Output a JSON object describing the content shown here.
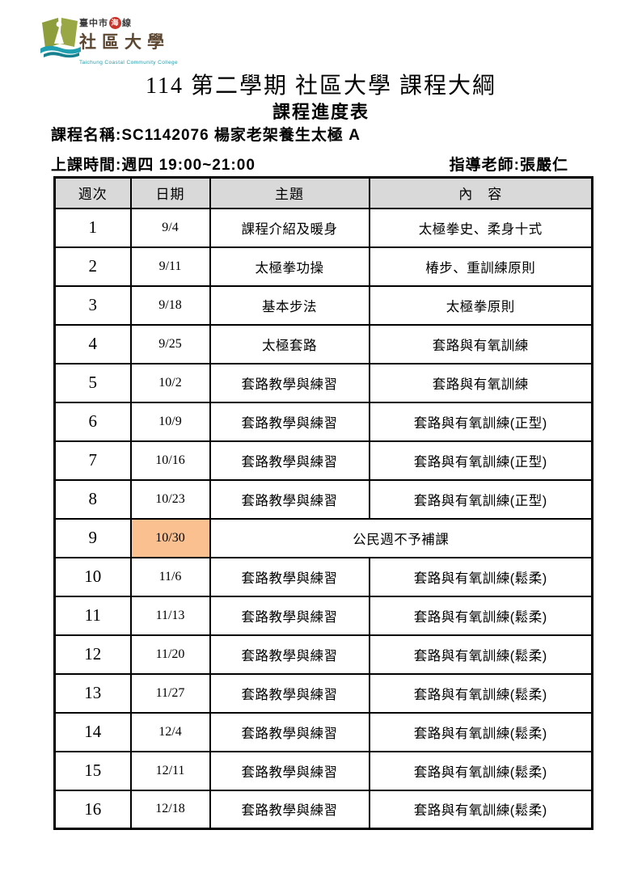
{
  "logo": {
    "org_prefix": "臺中市",
    "seal_char": "海",
    "org_suffix": "線",
    "org_main": "社區大學",
    "org_english": "Taichung Coastal Community College"
  },
  "header": {
    "title": "114 第二學期 社區大學 課程大綱",
    "subtitle": "課程進度表",
    "course_label": "課程名稱:",
    "course_value": "SC1142076 楊家老架養生太極 A",
    "time_label": "上課時間:",
    "time_value": "週四 19:00~21:00",
    "instructor_label": "指導老師:",
    "instructor_value": "張嚴仁"
  },
  "table": {
    "columns": [
      "週次",
      "日期",
      "主題",
      "內　容"
    ],
    "rows": [
      {
        "week": "1",
        "date": "9/4",
        "topic": "課程介紹及暖身",
        "content": "太極拳史、柔身十式",
        "merged": false,
        "date_highlight": false
      },
      {
        "week": "2",
        "date": "9/11",
        "topic": "太極拳功操",
        "content": "椿步、重訓練原則",
        "merged": false,
        "date_highlight": false
      },
      {
        "week": "3",
        "date": "9/18",
        "topic": "基本步法",
        "content": "太極拳原則",
        "merged": false,
        "date_highlight": false
      },
      {
        "week": "4",
        "date": "9/25",
        "topic": "太極套路",
        "content": "套路與有氧訓練",
        "merged": false,
        "date_highlight": false
      },
      {
        "week": "5",
        "date": "10/2",
        "topic": "套路教學與練習",
        "content": "套路與有氧訓練",
        "merged": false,
        "date_highlight": false
      },
      {
        "week": "6",
        "date": "10/9",
        "topic": "套路教學與練習",
        "content": "套路與有氧訓練(正型)",
        "merged": false,
        "date_highlight": false
      },
      {
        "week": "7",
        "date": "10/16",
        "topic": "套路教學與練習",
        "content": "套路與有氧訓練(正型)",
        "merged": false,
        "date_highlight": false
      },
      {
        "week": "8",
        "date": "10/23",
        "topic": "套路教學與練習",
        "content": "套路與有氧訓練(正型)",
        "merged": false,
        "date_highlight": false
      },
      {
        "week": "9",
        "date": "10/30",
        "topic": "",
        "content": "公民週不予補課",
        "merged": true,
        "date_highlight": true
      },
      {
        "week": "10",
        "date": "11/6",
        "topic": "套路教學與練習",
        "content": "套路與有氧訓練(鬆柔)",
        "merged": false,
        "date_highlight": false
      },
      {
        "week": "11",
        "date": "11/13",
        "topic": "套路教學與練習",
        "content": "套路與有氧訓練(鬆柔)",
        "merged": false,
        "date_highlight": false
      },
      {
        "week": "12",
        "date": "11/20",
        "topic": "套路教學與練習",
        "content": "套路與有氧訓練(鬆柔)",
        "merged": false,
        "date_highlight": false
      },
      {
        "week": "13",
        "date": "11/27",
        "topic": "套路教學與練習",
        "content": "套路與有氧訓練(鬆柔)",
        "merged": false,
        "date_highlight": false
      },
      {
        "week": "14",
        "date": "12/4",
        "topic": "套路教學與練習",
        "content": "套路與有氧訓練(鬆柔)",
        "merged": false,
        "date_highlight": false
      },
      {
        "week": "15",
        "date": "12/11",
        "topic": "套路教學與練習",
        "content": "套路與有氧訓練(鬆柔)",
        "merged": false,
        "date_highlight": false
      },
      {
        "week": "16",
        "date": "12/18",
        "topic": "套路教學與練習",
        "content": "套路與有氧訓練(鬆柔)",
        "merged": false,
        "date_highlight": false
      }
    ]
  },
  "colors": {
    "header_bg": "#d9d9d9",
    "highlight_bg": "#fac090",
    "border": "#000000",
    "logo_green": "#8f9e3d",
    "logo_teal": "#1f9fb0",
    "seal_red": "#c9342b"
  }
}
